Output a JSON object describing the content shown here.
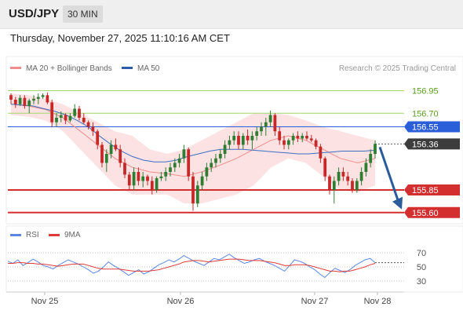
{
  "header": {
    "pair": "USD/JPY",
    "timeframe": "30 MIN"
  },
  "datetime": "Thursday, November 27, 2025 11:10:16 AM CET",
  "legend": {
    "ma20": "MA 20 + Bollinger Bands",
    "ma50": "MA 50",
    "credit": "Research © 2025 Trading Central",
    "rsi": "RSI",
    "ma9": "9MA"
  },
  "colors": {
    "candle_up": "#2e7d32",
    "candle_down": "#c62828",
    "bollinger": "#fbd8d8",
    "ma20": "#f08c8c",
    "ma50": "#3a6fc4",
    "support": "#d32f2f",
    "resistance_green": "#a5d66e",
    "pivot": "#2b5fd9",
    "current": "#3c3c3c",
    "arrow": "#2a5b9a",
    "rsi": "#5b87e0",
    "rsi_ma": "#e03a3a"
  },
  "chart_data": [
    {
      "type": "candlestick",
      "title": "USD/JPY",
      "x_labels": [
        "Nov 25",
        "Nov 26",
        "Nov 27",
        "Nov 28"
      ],
      "ylim": [
        155.5,
        157.0
      ],
      "levels": [
        {
          "label": "156.95",
          "value": 156.95,
          "kind": "resistance"
        },
        {
          "label": "156.70",
          "value": 156.7,
          "kind": "resistance"
        },
        {
          "label": "156.55",
          "value": 156.55,
          "kind": "pivot"
        },
        {
          "label": "156.36",
          "value": 156.36,
          "kind": "current"
        },
        {
          "label": "155.85",
          "value": 155.85,
          "kind": "support"
        },
        {
          "label": "155.60",
          "value": 155.6,
          "kind": "support"
        }
      ],
      "forecast": {
        "from": 156.36,
        "to": 155.6
      },
      "ohlc": [
        [
          156.9,
          156.92,
          156.8,
          156.85
        ],
        [
          156.85,
          156.88,
          156.76,
          156.8
        ],
        [
          156.8,
          156.9,
          156.78,
          156.87
        ],
        [
          156.87,
          156.9,
          156.75,
          156.78
        ],
        [
          156.78,
          156.86,
          156.7,
          156.84
        ],
        [
          156.84,
          156.9,
          156.8,
          156.86
        ],
        [
          156.86,
          156.92,
          156.8,
          156.88
        ],
        [
          156.88,
          156.92,
          156.86,
          156.9
        ],
        [
          156.9,
          156.93,
          156.8,
          156.82
        ],
        [
          156.82,
          156.85,
          156.55,
          156.6
        ],
        [
          156.6,
          156.7,
          156.55,
          156.65
        ],
        [
          156.65,
          156.72,
          156.6,
          156.68
        ],
        [
          156.68,
          156.7,
          156.58,
          156.62
        ],
        [
          156.62,
          156.7,
          156.6,
          156.67
        ],
        [
          156.67,
          156.8,
          156.65,
          156.75
        ],
        [
          156.75,
          156.78,
          156.62,
          156.65
        ],
        [
          156.65,
          156.7,
          156.58,
          156.6
        ],
        [
          156.6,
          156.62,
          156.52,
          156.55
        ],
        [
          156.55,
          156.6,
          156.45,
          156.5
        ],
        [
          156.5,
          156.52,
          156.3,
          156.35
        ],
        [
          156.35,
          156.38,
          156.1,
          156.15
        ],
        [
          156.15,
          156.3,
          156.05,
          156.25
        ],
        [
          156.25,
          156.4,
          156.2,
          156.35
        ],
        [
          156.35,
          156.42,
          156.28,
          156.3
        ],
        [
          156.3,
          156.35,
          156.1,
          156.15
        ],
        [
          156.15,
          156.2,
          155.98,
          156.02
        ],
        [
          156.02,
          156.05,
          155.85,
          155.9
        ],
        [
          155.9,
          156.1,
          155.85,
          156.05
        ],
        [
          156.05,
          156.1,
          155.9,
          155.95
        ],
        [
          155.95,
          156.05,
          155.88,
          156.0
        ],
        [
          156.0,
          156.02,
          155.9,
          155.95
        ],
        [
          155.95,
          156.0,
          155.8,
          155.85
        ],
        [
          155.85,
          156.0,
          155.82,
          155.98
        ],
        [
          155.98,
          156.05,
          155.95,
          156.0
        ],
        [
          156.0,
          156.1,
          155.95,
          156.05
        ],
        [
          156.05,
          156.15,
          156.0,
          156.1
        ],
        [
          156.1,
          156.2,
          156.05,
          156.15
        ],
        [
          156.15,
          156.25,
          156.1,
          156.2
        ],
        [
          156.2,
          156.35,
          156.15,
          156.3
        ],
        [
          156.3,
          156.32,
          155.95,
          156.0
        ],
        [
          156.0,
          156.05,
          155.62,
          155.7
        ],
        [
          155.7,
          155.95,
          155.66,
          155.9
        ],
        [
          155.9,
          156.05,
          155.85,
          156.0
        ],
        [
          156.0,
          156.15,
          155.95,
          156.1
        ],
        [
          156.1,
          156.2,
          156.05,
          156.15
        ],
        [
          156.15,
          156.25,
          156.1,
          156.2
        ],
        [
          156.2,
          156.3,
          156.15,
          156.25
        ],
        [
          156.25,
          156.4,
          156.2,
          156.35
        ],
        [
          156.35,
          156.45,
          156.3,
          156.4
        ],
        [
          156.4,
          156.5,
          156.35,
          156.45
        ],
        [
          156.45,
          156.5,
          156.3,
          156.35
        ],
        [
          156.35,
          156.48,
          156.3,
          156.45
        ],
        [
          156.45,
          156.52,
          156.35,
          156.4
        ],
        [
          156.4,
          156.5,
          156.3,
          156.45
        ],
        [
          156.45,
          156.55,
          156.4,
          156.5
        ],
        [
          156.5,
          156.6,
          156.45,
          156.55
        ],
        [
          156.55,
          156.65,
          156.45,
          156.6
        ],
        [
          156.6,
          156.73,
          156.55,
          156.68
        ],
        [
          156.68,
          156.7,
          156.45,
          156.5
        ],
        [
          156.5,
          156.55,
          156.35,
          156.4
        ],
        [
          156.4,
          156.45,
          156.3,
          156.35
        ],
        [
          156.35,
          156.42,
          156.3,
          156.4
        ],
        [
          156.4,
          156.48,
          156.35,
          156.45
        ],
        [
          156.45,
          156.5,
          156.38,
          156.42
        ],
        [
          156.42,
          156.48,
          156.38,
          156.45
        ],
        [
          156.45,
          156.5,
          156.4,
          156.42
        ],
        [
          156.42,
          156.46,
          156.38,
          156.4
        ],
        [
          156.4,
          156.42,
          156.3,
          156.33
        ],
        [
          156.33,
          156.36,
          156.15,
          156.2
        ],
        [
          156.2,
          156.22,
          155.95,
          156.0
        ],
        [
          156.0,
          156.02,
          155.8,
          155.85
        ],
        [
          155.85,
          156.0,
          155.7,
          155.95
        ],
        [
          155.95,
          156.1,
          155.9,
          156.05
        ],
        [
          156.05,
          156.1,
          155.95,
          156.0
        ],
        [
          156.0,
          156.05,
          155.9,
          155.95
        ],
        [
          155.95,
          155.98,
          155.82,
          155.85
        ],
        [
          155.85,
          155.98,
          155.82,
          155.95
        ],
        [
          155.95,
          156.1,
          155.9,
          156.05
        ],
        [
          156.05,
          156.2,
          156.0,
          156.15
        ],
        [
          156.15,
          156.3,
          156.1,
          156.25
        ],
        [
          156.25,
          156.4,
          156.2,
          156.36
        ]
      ],
      "bollinger_ma20": [
        [
          156.92,
          156.8,
          156.68
        ],
        [
          156.9,
          156.78,
          156.66
        ],
        [
          156.86,
          156.74,
          156.62
        ],
        [
          156.8,
          156.65,
          156.5
        ],
        [
          156.7,
          156.5,
          156.3
        ],
        [
          156.6,
          156.35,
          156.1
        ],
        [
          156.5,
          156.2,
          155.9
        ],
        [
          156.45,
          156.1,
          155.8
        ],
        [
          156.3,
          156.05,
          155.8
        ],
        [
          156.25,
          156.03,
          155.8
        ],
        [
          156.3,
          156.0,
          155.7
        ],
        [
          156.4,
          156.05,
          155.7
        ],
        [
          156.5,
          156.12,
          155.75
        ],
        [
          156.6,
          156.2,
          155.8
        ],
        [
          156.7,
          156.3,
          155.9
        ],
        [
          156.7,
          156.4,
          156.1
        ],
        [
          156.68,
          156.45,
          156.2
        ],
        [
          156.62,
          156.4,
          156.15
        ],
        [
          156.55,
          156.3,
          156.0
        ],
        [
          156.5,
          156.2,
          155.85
        ],
        [
          156.45,
          156.15,
          155.82
        ],
        [
          156.4,
          156.2,
          155.9
        ]
      ],
      "ma50": [
        156.8,
        156.79,
        156.78,
        156.75,
        156.72,
        156.68,
        156.62,
        156.55,
        156.45,
        156.36,
        156.28,
        156.22,
        156.18,
        156.16,
        156.16,
        156.18,
        156.22,
        156.25,
        156.28,
        156.3,
        156.3,
        156.3,
        156.29,
        156.28,
        156.27,
        156.26,
        156.25,
        156.25,
        156.26,
        156.27,
        156.28,
        156.28,
        156.28,
        156.29
      ]
    },
    {
      "type": "line",
      "title": "RSI",
      "y_ticks": [
        70,
        50,
        30
      ],
      "ylim": [
        20,
        80
      ],
      "series": [
        {
          "name": "RSI",
          "values": [
            58,
            55,
            60,
            52,
            56,
            61,
            57,
            52,
            50,
            47,
            52,
            56,
            60,
            57,
            54,
            50,
            46,
            41,
            44,
            50,
            57,
            52,
            48,
            43,
            38,
            42,
            46,
            40,
            43,
            48,
            53,
            56,
            60,
            57,
            61,
            66,
            62,
            58,
            55,
            52,
            57,
            62,
            60,
            64,
            68,
            63,
            59,
            55,
            57,
            60,
            62,
            58,
            55,
            52,
            48,
            44,
            52,
            60,
            58,
            55,
            50,
            46,
            40,
            35,
            42,
            48,
            45,
            42,
            46,
            52,
            56,
            60,
            62,
            56
          ]
        },
        {
          "name": "9MA",
          "values": [
            55,
            55,
            56,
            56,
            55,
            55,
            54,
            54,
            53,
            52,
            51,
            52,
            53,
            54,
            54,
            54,
            52,
            50,
            48,
            47,
            47,
            47,
            47,
            46,
            45,
            44,
            44,
            44,
            44,
            45,
            46,
            48,
            50,
            52,
            54,
            57,
            58,
            59,
            59,
            58,
            57,
            58,
            59,
            60,
            61,
            61,
            61,
            60,
            59,
            59,
            59,
            58,
            57,
            56,
            54,
            52,
            52,
            53,
            53,
            53,
            52,
            50,
            48,
            46,
            44,
            44,
            43,
            44,
            44,
            46,
            48,
            50,
            53,
            55
          ]
        }
      ]
    }
  ]
}
